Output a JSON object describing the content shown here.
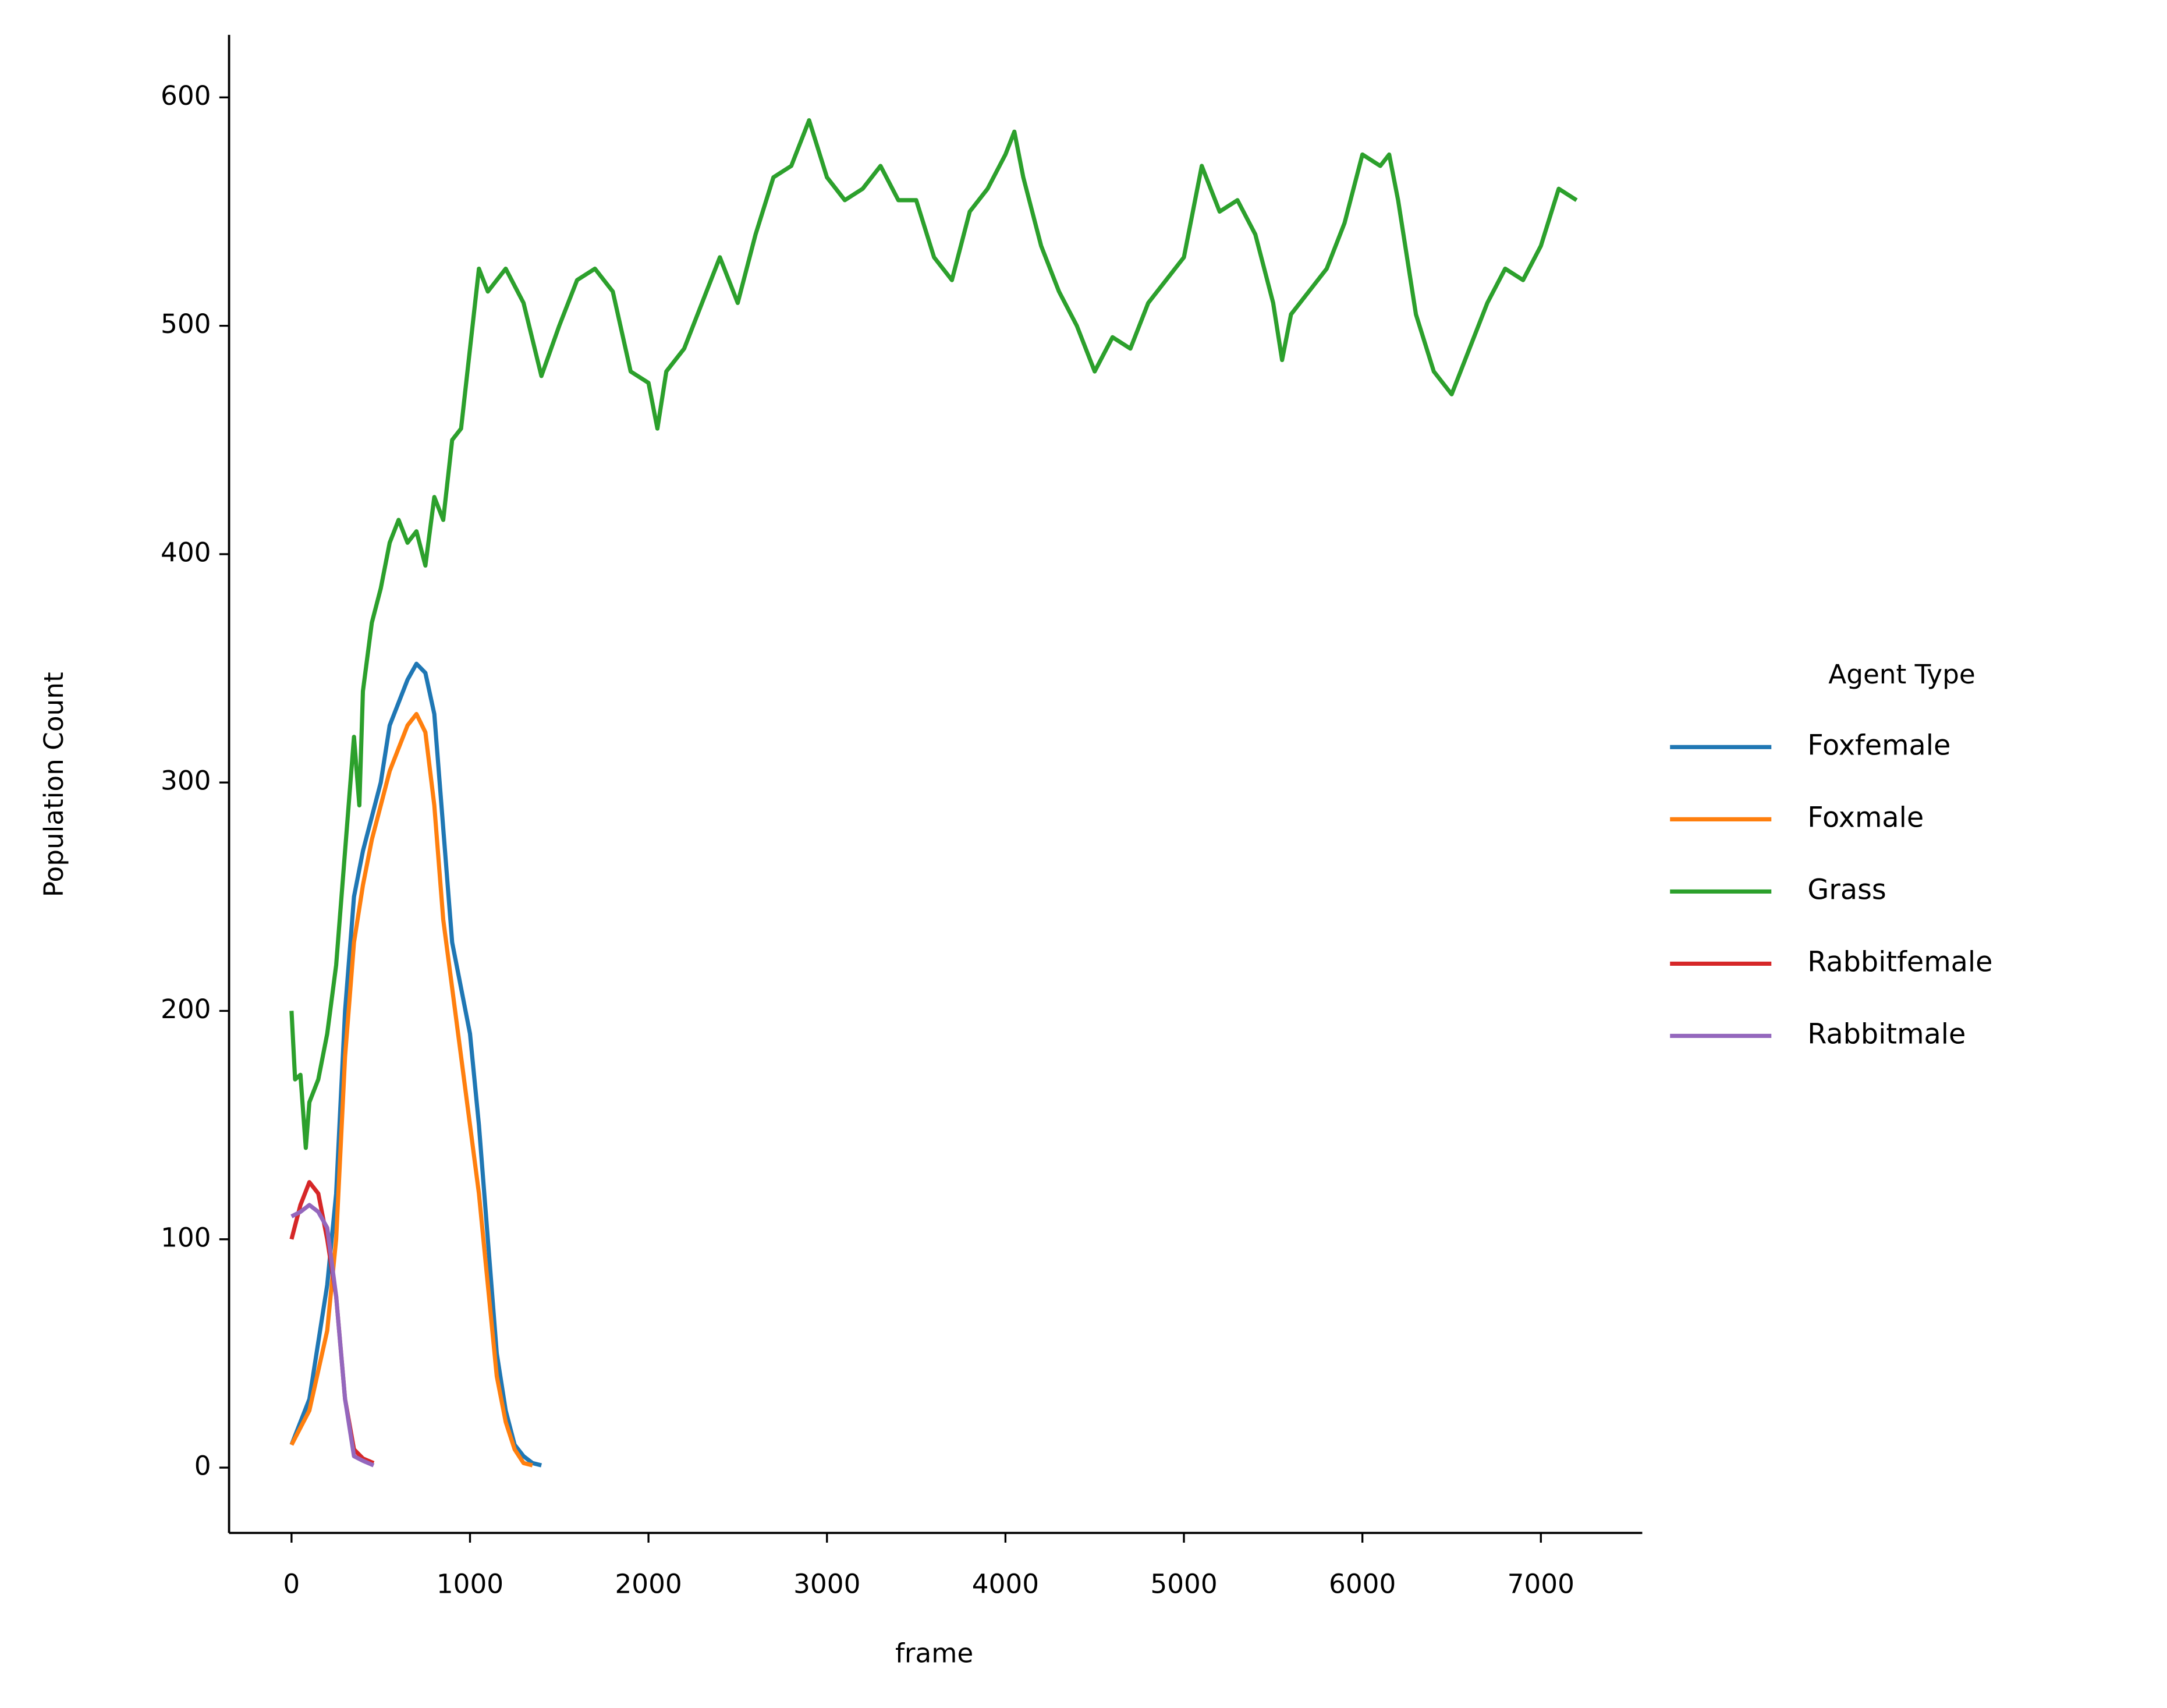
{
  "chart_data": {
    "type": "line",
    "xlabel": "frame",
    "ylabel": "Population Count",
    "xlim": [
      -350,
      7568
    ],
    "ylim": [
      -28.6,
      627.4
    ],
    "xticks": [
      0,
      1000,
      2000,
      3000,
      4000,
      5000,
      6000,
      7000
    ],
    "yticks": [
      0,
      100,
      200,
      300,
      400,
      500,
      600
    ],
    "grid": false,
    "legend_title": "Agent Type",
    "legend_position": "right",
    "series": [
      {
        "name": "Foxfemale",
        "color": "#1f77b4",
        "x": [
          0,
          100,
          200,
          250,
          300,
          350,
          400,
          450,
          500,
          550,
          600,
          650,
          700,
          750,
          800,
          850,
          900,
          950,
          1000,
          1050,
          1100,
          1150,
          1200,
          1250,
          1300,
          1350,
          1400
        ],
        "values": [
          10,
          30,
          80,
          120,
          200,
          250,
          270,
          285,
          300,
          325,
          335,
          345,
          352,
          348,
          330,
          280,
          230,
          210,
          190,
          150,
          100,
          50,
          25,
          10,
          5,
          2,
          1
        ]
      },
      {
        "name": "Foxmale",
        "color": "#ff7f0e",
        "x": [
          0,
          100,
          200,
          250,
          300,
          350,
          400,
          450,
          500,
          550,
          600,
          650,
          700,
          750,
          800,
          850,
          900,
          950,
          1000,
          1050,
          1100,
          1150,
          1200,
          1250,
          1300,
          1350
        ],
        "values": [
          10,
          25,
          60,
          100,
          180,
          230,
          255,
          275,
          290,
          305,
          315,
          325,
          330,
          322,
          290,
          240,
          210,
          180,
          150,
          120,
          80,
          40,
          20,
          8,
          2,
          1
        ]
      },
      {
        "name": "Grass",
        "color": "#2ca02c",
        "x": [
          0,
          20,
          50,
          80,
          100,
          150,
          200,
          250,
          300,
          350,
          380,
          400,
          450,
          500,
          550,
          600,
          650,
          700,
          750,
          800,
          850,
          900,
          950,
          1000,
          1050,
          1100,
          1150,
          1200,
          1300,
          1400,
          1500,
          1600,
          1700,
          1800,
          1900,
          2000,
          2050,
          2100,
          2200,
          2300,
          2400,
          2500,
          2600,
          2700,
          2800,
          2900,
          3000,
          3100,
          3200,
          3300,
          3400,
          3500,
          3600,
          3700,
          3800,
          3900,
          4000,
          4050,
          4100,
          4200,
          4300,
          4400,
          4500,
          4600,
          4700,
          4800,
          4900,
          5000,
          5100,
          5200,
          5300,
          5400,
          5500,
          5550,
          5600,
          5700,
          5800,
          5900,
          6000,
          6100,
          6150,
          6200,
          6300,
          6400,
          6500,
          6600,
          6700,
          6800,
          6900,
          7000,
          7100,
          7200
        ],
        "values": [
          200,
          170,
          172,
          140,
          160,
          170,
          190,
          220,
          270,
          320,
          290,
          340,
          370,
          385,
          405,
          415,
          405,
          410,
          395,
          425,
          415,
          450,
          455,
          490,
          525,
          515,
          520,
          525,
          510,
          478,
          500,
          520,
          525,
          515,
          480,
          475,
          455,
          480,
          490,
          510,
          530,
          510,
          540,
          565,
          570,
          590,
          565,
          555,
          560,
          570,
          555,
          555,
          530,
          520,
          550,
          560,
          575,
          585,
          565,
          535,
          515,
          500,
          480,
          495,
          490,
          510,
          520,
          530,
          570,
          550,
          555,
          540,
          510,
          485,
          505,
          515,
          525,
          545,
          575,
          570,
          575,
          555,
          505,
          480,
          470,
          490,
          510,
          525,
          520,
          535,
          560,
          555
        ]
      },
      {
        "name": "Rabbitfemale",
        "color": "#d62728",
        "x": [
          0,
          50,
          100,
          150,
          200,
          250,
          300,
          350,
          400,
          460
        ],
        "values": [
          100,
          115,
          125,
          120,
          100,
          75,
          30,
          8,
          4,
          2
        ]
      },
      {
        "name": "Rabbitmale",
        "color": "#9467bd",
        "x": [
          0,
          50,
          100,
          150,
          200,
          250,
          300,
          350,
          400,
          460
        ],
        "values": [
          110,
          112,
          115,
          112,
          105,
          75,
          30,
          5,
          3,
          1
        ]
      }
    ]
  }
}
